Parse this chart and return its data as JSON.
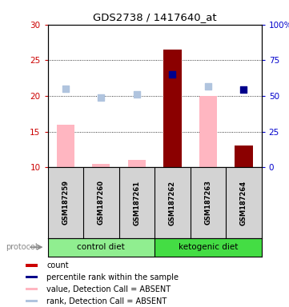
{
  "title": "GDS2738 / 1417640_at",
  "samples": [
    "GSM187259",
    "GSM187260",
    "GSM187261",
    "GSM187262",
    "GSM187263",
    "GSM187264"
  ],
  "ylim_left": [
    10,
    30
  ],
  "ylim_right": [
    0,
    100
  ],
  "yticks_left": [
    10,
    15,
    20,
    25,
    30
  ],
  "yticks_right": [
    0,
    25,
    50,
    75,
    100
  ],
  "value_bars": [
    16.0,
    10.5,
    11.0,
    26.5,
    20.0,
    13.0
  ],
  "value_bar_colors": [
    "#FFB6C1",
    "#FFB6C1",
    "#FFB6C1",
    "#8B0000",
    "#FFB6C1",
    "#8B0000"
  ],
  "rank_dots": [
    21.0,
    19.8,
    20.2,
    23.0,
    21.3,
    20.9
  ],
  "rank_dot_colors": [
    "#B0C4DE",
    "#B0C4DE",
    "#B0C4DE",
    "#00008B",
    "#B0C4DE",
    "#00008B"
  ],
  "dot_size": 28,
  "bar_bottom": 10,
  "bar_width": 0.5,
  "background_color": "#FFFFFF",
  "label_color_left": "#CC0000",
  "label_color_right": "#0000CC",
  "control_color": "#90EE90",
  "ketogenic_color": "#44DD44",
  "sample_bg": "#D3D3D3",
  "legend_items": [
    {
      "color": "#CC0000",
      "label": "count"
    },
    {
      "color": "#00008B",
      "label": "percentile rank within the sample"
    },
    {
      "color": "#FFB6C1",
      "label": "value, Detection Call = ABSENT"
    },
    {
      "color": "#B0C4DE",
      "label": "rank, Detection Call = ABSENT"
    }
  ]
}
